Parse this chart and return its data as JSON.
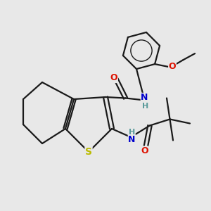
{
  "background_color": "#e8e8e8",
  "bond_color": "#1a1a1a",
  "atom_colors": {
    "N": "#0000cc",
    "O": "#dd1100",
    "S": "#bbbb00",
    "H": "#5a9a9a",
    "C": "#1a1a1a"
  },
  "figsize": [
    3.0,
    3.0
  ],
  "dpi": 100
}
